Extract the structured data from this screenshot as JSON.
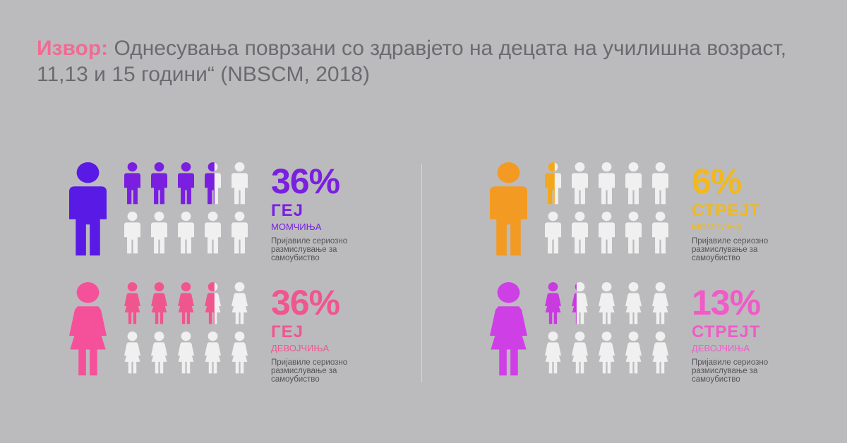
{
  "header": {
    "source_label": "Извор:",
    "source_text": "Однесувања поврзани со здравјето на децата на училишна возраст, 11,13 и 15 години“ (NBSCM, 2018)"
  },
  "colors": {
    "icon_inactive": "#f0f0f0",
    "gay_boys": "#7a1fe0",
    "straight_boys": "#f2a81c",
    "gay_girls": "#f0568e",
    "straight_girls": "#c93bde"
  },
  "chart_data": {
    "type": "table",
    "unit": "%",
    "icons_per_group": 10,
    "groups": [
      {
        "id": "gay_boys",
        "figure": "male",
        "value": 36,
        "value_label": "36%",
        "orientation_label": "ГЕЈ",
        "gender_label": "МОМЧИЊА",
        "description": "Пријавиле сериозно размислување за самоубиство",
        "color": "#7a1fe0",
        "color_big": "#5a1ae6"
      },
      {
        "id": "straight_boys",
        "figure": "male",
        "value": 6,
        "value_label": "6%",
        "orientation_label": "СТРЕЈТ",
        "gender_label": "МОМЧИЊА",
        "description": "Пријавиле сериозно размислување за самоубиство",
        "color": "#f2a81c",
        "color_big": "#f39a22"
      },
      {
        "id": "gay_girls",
        "figure": "female",
        "value": 36,
        "value_label": "36%",
        "orientation_label": "ГЕЈ",
        "gender_label": "ДЕВОЈЧИЊА",
        "description": "Пријавиле сериозно размислување за самоубиство",
        "color": "#f0568e",
        "color_big": "#f5519a"
      },
      {
        "id": "straight_girls",
        "figure": "female",
        "value": 13,
        "value_label": "13%",
        "orientation_label": "СТРЕЈТ",
        "gender_label": "ДЕВОЈЧИЊА",
        "description": "Пријавиле сериозно размислување за самоубиство",
        "color": "#c93bde",
        "color_big": "#cf3fe6"
      }
    ]
  }
}
